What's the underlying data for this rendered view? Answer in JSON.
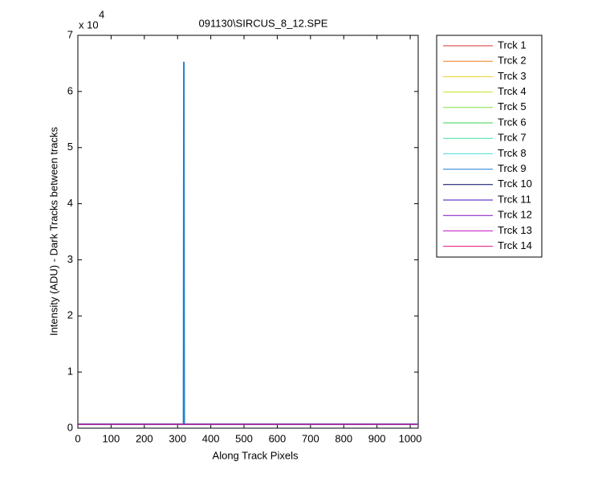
{
  "chart_data": {
    "type": "line",
    "title": "091130\\SIRCUS_8_12.SPE",
    "x_label": "Along Track Pixels",
    "y_label": "Intensity (ADU) - Dark Tracks between tracks",
    "y_multiplier": "x 10",
    "y_multiplier_exponent": "4",
    "x": [
      1,
      318,
      319,
      320,
      1024
    ],
    "series": [
      {
        "name": "Trck 1",
        "color": "#e03030",
        "values": [
          0.07,
          0.07,
          0.07,
          0.07,
          0.07
        ]
      },
      {
        "name": "Trck 2",
        "color": "#f08020",
        "values": [
          0.07,
          0.07,
          0.07,
          0.07,
          0.07
        ]
      },
      {
        "name": "Trck 3",
        "color": "#e8d020",
        "values": [
          0.07,
          0.07,
          0.07,
          0.07,
          0.07
        ]
      },
      {
        "name": "Trck 4",
        "color": "#c8e020",
        "values": [
          0.07,
          0.07,
          0.07,
          0.07,
          0.07
        ]
      },
      {
        "name": "Trck 5",
        "color": "#80e040",
        "values": [
          0.07,
          0.07,
          0.07,
          0.07,
          0.07
        ]
      },
      {
        "name": "Trck 6",
        "color": "#40d050",
        "values": [
          0.07,
          0.07,
          0.07,
          0.07,
          0.07
        ]
      },
      {
        "name": "Trck 7",
        "color": "#40e0a0",
        "values": [
          0.07,
          0.07,
          0.07,
          0.07,
          0.07
        ]
      },
      {
        "name": "Trck 8",
        "color": "#40e0e0",
        "values": [
          0.07,
          0.07,
          0.07,
          0.07,
          0.07
        ]
      },
      {
        "name": "Trck 9",
        "color": "#2080d0",
        "values": [
          0.07,
          0.07,
          6.53,
          0.07,
          0.07
        ]
      },
      {
        "name": "Trck 10",
        "color": "#000060",
        "values": [
          0.07,
          0.07,
          0.07,
          0.07,
          0.07
        ]
      },
      {
        "name": "Trck 11",
        "color": "#4010c0",
        "values": [
          0.07,
          0.07,
          0.07,
          0.07,
          0.07
        ]
      },
      {
        "name": "Trck 12",
        "color": "#8010c0",
        "values": [
          0.07,
          0.07,
          0.07,
          0.07,
          0.07
        ]
      },
      {
        "name": "Trck 13",
        "color": "#c010c0",
        "values": [
          0.07,
          0.07,
          0.07,
          0.07,
          0.07
        ]
      },
      {
        "name": "Trck 14",
        "color": "#e01080",
        "values": [
          0.07,
          0.07,
          0.07,
          0.07,
          0.07
        ]
      }
    ],
    "xlim": [
      0,
      1024
    ],
    "xticks": [
      0,
      100,
      200,
      300,
      400,
      500,
      600,
      700,
      800,
      900,
      1000
    ],
    "ylim": [
      0,
      7
    ],
    "yticks": [
      0,
      1,
      2,
      3,
      4,
      5,
      6,
      7
    ],
    "grid": false,
    "legend": "outside-right"
  }
}
